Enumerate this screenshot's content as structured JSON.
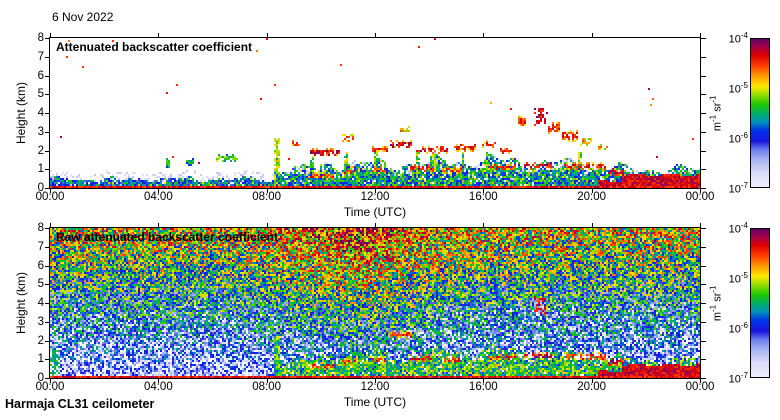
{
  "page": {
    "date_label": "6 Nov 2022",
    "footer_label": "Harmaja CL31 ceilometer",
    "background_color": "#ffffff"
  },
  "colormap": {
    "description": "jet-like, pale lavender at low values to dark purple at high values",
    "no_data_color": "#ffffff",
    "stops": [
      [
        0.0,
        "#f1effc"
      ],
      [
        0.1,
        "#d8daf8"
      ],
      [
        0.18,
        "#aab6f4"
      ],
      [
        0.25,
        "#6e80ee"
      ],
      [
        0.31,
        "#1a14dd"
      ],
      [
        0.38,
        "#0033e8"
      ],
      [
        0.44,
        "#0090bb"
      ],
      [
        0.5,
        "#00b060"
      ],
      [
        0.56,
        "#22c800"
      ],
      [
        0.63,
        "#a0e000"
      ],
      [
        0.68,
        "#ffe800"
      ],
      [
        0.75,
        "#ff9900"
      ],
      [
        0.82,
        "#ff3c00"
      ],
      [
        0.89,
        "#dd0000"
      ],
      [
        0.95,
        "#a0004d"
      ],
      [
        1.0,
        "#600060"
      ]
    ]
  },
  "chart_data": [
    {
      "type": "heatmap",
      "mode": "processed",
      "seed": 7,
      "title": "Attenuated backscatter coefficient",
      "xlabel": "Time (UTC)",
      "ylabel": "Height (km)",
      "x_tick_labels": [
        "00:00",
        "04:00",
        "08:00",
        "12:00",
        "16:00",
        "20:00",
        "00:00"
      ],
      "x_range_hours": [
        0,
        24
      ],
      "y_tick_labels": [
        "0",
        "1",
        "2",
        "3",
        "4",
        "5",
        "6",
        "7",
        "8"
      ],
      "ylim_km": [
        0,
        8
      ],
      "grid": false,
      "colorbar": {
        "scale": "log10",
        "range": [
          "1e-7",
          "1e-4"
        ],
        "ticks": [
          {
            "base": "10",
            "exp": "-4"
          },
          {
            "base": "10",
            "exp": "-5"
          },
          {
            "base": "10",
            "exp": "-6"
          },
          {
            "base": "10",
            "exp": "-7"
          }
        ],
        "unit_parts": [
          {
            "text": "m",
            "exp": "-1"
          },
          {
            "text": " sr",
            "exp": "-1"
          }
        ]
      },
      "features": {
        "surface_band_km": 0.13,
        "boundary_layer": {
          "start_hour": 0,
          "segments": [
            {
              "t0": 0,
              "t1": 8.3,
              "top": 0.5,
              "i": 0.0
            },
            {
              "t0": 8.3,
              "t1": 10,
              "top": 1.05,
              "i": 0.1
            },
            {
              "t0": 10,
              "t1": 14,
              "top": 1.3,
              "i": 0.12
            },
            {
              "t0": 14,
              "t1": 18,
              "top": 1.45,
              "i": 0.12
            },
            {
              "t0": 18,
              "t1": 20.2,
              "top": 1.3,
              "i": 0.1
            },
            {
              "t0": 20.2,
              "t1": 21.1,
              "top": 1.1,
              "i": 0.15,
              "fog": 0.35
            },
            {
              "t0": 21.1,
              "t1": 24,
              "top": 1.0,
              "i": 0.1,
              "fog": 0.7
            }
          ]
        },
        "clouds": [
          {
            "t0": 4.25,
            "t1": 4.45,
            "h0": 1.0,
            "h1": 1.6,
            "c": "green"
          },
          {
            "t0": 5.05,
            "t1": 5.3,
            "h0": 1.25,
            "h1": 1.5,
            "c": "green"
          },
          {
            "t0": 6.1,
            "t1": 6.95,
            "h0": 1.45,
            "h1": 1.7,
            "c": "greenyellow"
          },
          {
            "t0": 8.28,
            "t1": 8.5,
            "h0": 0.2,
            "h1": 2.6,
            "c": "yellow"
          },
          {
            "t0": 8.9,
            "t1": 9.2,
            "h0": 2.25,
            "h1": 2.5,
            "c": "red"
          },
          {
            "t0": 9.6,
            "t1": 10.7,
            "h0": 1.75,
            "h1": 2.05,
            "c": "reddark"
          },
          {
            "t0": 10.75,
            "t1": 11.25,
            "h0": 2.5,
            "h1": 2.8,
            "c": "red"
          },
          {
            "t0": 11.9,
            "t1": 12.45,
            "h0": 1.95,
            "h1": 2.2,
            "c": "red"
          },
          {
            "t0": 12.55,
            "t1": 13.4,
            "h0": 2.2,
            "h1": 2.45,
            "c": "reddark"
          },
          {
            "t0": 12.95,
            "t1": 13.3,
            "h0": 3.0,
            "h1": 3.2,
            "c": "orange"
          },
          {
            "t0": 13.5,
            "t1": 14.7,
            "h0": 1.9,
            "h1": 2.15,
            "c": "reddark"
          },
          {
            "t0": 14.9,
            "t1": 15.7,
            "h0": 2.0,
            "h1": 2.3,
            "c": "red"
          },
          {
            "t0": 15.9,
            "t1": 16.5,
            "h0": 2.2,
            "h1": 2.45,
            "c": "red"
          },
          {
            "t0": 16.6,
            "t1": 17.05,
            "h0": 1.85,
            "h1": 2.1,
            "c": "red"
          },
          {
            "t0": 17.25,
            "t1": 17.6,
            "h0": 3.35,
            "h1": 3.75,
            "c": "red"
          },
          {
            "t0": 17.85,
            "t1": 18.35,
            "h0": 3.4,
            "h1": 4.25,
            "c": "reddark"
          },
          {
            "t0": 18.4,
            "t1": 18.85,
            "h0": 2.95,
            "h1": 3.45,
            "c": "red"
          },
          {
            "t0": 18.9,
            "t1": 19.5,
            "h0": 2.55,
            "h1": 3.0,
            "c": "red"
          },
          {
            "t0": 19.55,
            "t1": 20.0,
            "h0": 2.35,
            "h1": 2.6,
            "c": "orange"
          },
          {
            "t0": 20.25,
            "t1": 20.6,
            "h0": 2.1,
            "h1": 2.3,
            "c": "orange"
          },
          {
            "t0": 9.5,
            "t1": 10.5,
            "h0": 0.55,
            "h1": 0.75,
            "c": "red"
          },
          {
            "t0": 10.8,
            "t1": 11.3,
            "h0": 0.75,
            "h1": 0.95,
            "c": "red"
          },
          {
            "t0": 11.9,
            "t1": 12.4,
            "h0": 0.85,
            "h1": 1.05,
            "c": "red"
          },
          {
            "t0": 13.3,
            "t1": 14.2,
            "h0": 0.95,
            "h1": 1.15,
            "c": "reddark"
          },
          {
            "t0": 14.5,
            "t1": 15.2,
            "h0": 0.85,
            "h1": 1.05,
            "c": "red"
          },
          {
            "t0": 16.2,
            "t1": 17.2,
            "h0": 1.0,
            "h1": 1.2,
            "c": "red"
          },
          {
            "t0": 17.5,
            "t1": 18.5,
            "h0": 1.1,
            "h1": 1.3,
            "c": "reddark"
          },
          {
            "t0": 19.0,
            "t1": 20.5,
            "h0": 1.0,
            "h1": 1.3,
            "c": "red"
          },
          {
            "t0": 20.6,
            "t1": 21.3,
            "h0": 0.7,
            "h1": 1.0,
            "c": "reddark"
          }
        ],
        "virga": [
          {
            "t": 8.38
          },
          {
            "t": 9.7
          },
          {
            "t": 10.95
          },
          {
            "t": 12.05
          },
          {
            "t": 13.6
          },
          {
            "t": 14.15
          },
          {
            "t": 15.25
          },
          {
            "t": 16.15
          },
          {
            "t": 19.6
          }
        ],
        "specks": true
      }
    },
    {
      "type": "heatmap",
      "mode": "raw",
      "seed": 13,
      "title": "Raw attenuated backscatter coefficient",
      "xlabel": "Time (UTC)",
      "ylabel": "Height (km)",
      "x_tick_labels": [
        "00:00",
        "04:00",
        "08:00",
        "12:00",
        "16:00",
        "20:00",
        "00:00"
      ],
      "x_range_hours": [
        0,
        24
      ],
      "y_tick_labels": [
        "0",
        "1",
        "2",
        "3",
        "4",
        "5",
        "6",
        "7",
        "8"
      ],
      "ylim_km": [
        0,
        8
      ],
      "grid": false,
      "colorbar": {
        "scale": "log10",
        "range": [
          "1e-7",
          "1e-4"
        ],
        "ticks": [
          {
            "base": "10",
            "exp": "-4"
          },
          {
            "base": "10",
            "exp": "-5"
          },
          {
            "base": "10",
            "exp": "-6"
          },
          {
            "base": "10",
            "exp": "-7"
          }
        ],
        "unit_parts": [
          {
            "text": "m",
            "exp": "-1"
          },
          {
            "text": " sr",
            "exp": "-1"
          }
        ]
      },
      "features": {
        "noise": {
          "v0": 0.1,
          "v8": 0.58,
          "exp": 0.9,
          "spread": 0.55,
          "midday_center": 11.5,
          "midday_sigma": 2.8,
          "midday_amp": 0.16,
          "white_threshold": 0.15
        },
        "surface_band_km": 0.13,
        "boundary_layer": {
          "start_hour": 8.3,
          "segments": [
            {
              "t0": 0,
              "t1": 8.3,
              "top": 0.5,
              "i": 0.0
            },
            {
              "t0": 8.3,
              "t1": 10,
              "top": 1.05,
              "i": 0.1
            },
            {
              "t0": 10,
              "t1": 14,
              "top": 1.3,
              "i": 0.12
            },
            {
              "t0": 14,
              "t1": 18,
              "top": 1.45,
              "i": 0.12
            },
            {
              "t0": 18,
              "t1": 20.2,
              "top": 1.3,
              "i": 0.1
            },
            {
              "t0": 20.2,
              "t1": 21.1,
              "top": 1.1,
              "i": 0.15,
              "fog": 0.35
            },
            {
              "t0": 21.1,
              "t1": 24,
              "top": 1.0,
              "i": 0.1,
              "fog": 0.7
            }
          ]
        },
        "columns": [
          {
            "t": 8.4,
            "hw": 0.12,
            "boost": 0.3,
            "h1": 2.2
          },
          {
            "t": 12.05,
            "hw": 0.08,
            "boost": 0.25,
            "h1": 2.0
          }
        ],
        "clouds": [
          {
            "t0": 0.0,
            "t1": 0.4,
            "h0": 0.1,
            "h1": 1.5,
            "c": "greencyan"
          },
          {
            "t0": 19.9,
            "t1": 20.3,
            "h0": 0.05,
            "h1": 0.5,
            "c": "green"
          },
          {
            "t0": 9.5,
            "t1": 10.5,
            "h0": 0.55,
            "h1": 0.75,
            "c": "red"
          },
          {
            "t0": 10.8,
            "t1": 11.3,
            "h0": 0.75,
            "h1": 0.95,
            "c": "red"
          },
          {
            "t0": 11.9,
            "t1": 12.4,
            "h0": 0.85,
            "h1": 1.05,
            "c": "red"
          },
          {
            "t0": 13.3,
            "t1": 14.2,
            "h0": 0.95,
            "h1": 1.15,
            "c": "reddark"
          },
          {
            "t0": 14.5,
            "t1": 15.2,
            "h0": 0.85,
            "h1": 1.05,
            "c": "red"
          },
          {
            "t0": 16.2,
            "t1": 17.2,
            "h0": 1.0,
            "h1": 1.2,
            "c": "red"
          },
          {
            "t0": 17.5,
            "t1": 18.5,
            "h0": 1.1,
            "h1": 1.3,
            "c": "reddark"
          },
          {
            "t0": 19.0,
            "t1": 20.5,
            "h0": 1.0,
            "h1": 1.3,
            "c": "red"
          },
          {
            "t0": 20.6,
            "t1": 21.3,
            "h0": 0.7,
            "h1": 1.0,
            "c": "reddark"
          },
          {
            "t0": 12.55,
            "t1": 13.4,
            "h0": 2.2,
            "h1": 2.45,
            "c": "red"
          },
          {
            "t0": 17.85,
            "t1": 18.35,
            "h0": 3.4,
            "h1": 4.25,
            "c": "red"
          }
        ],
        "virga": [],
        "specks": false
      }
    }
  ]
}
